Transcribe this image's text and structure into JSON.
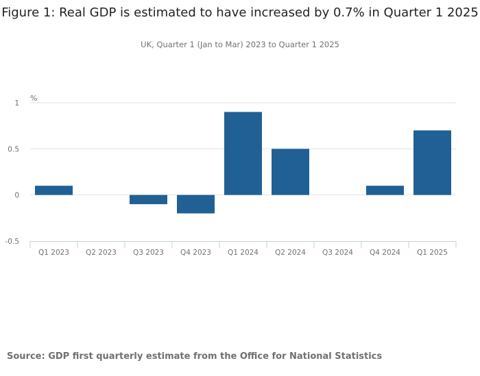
{
  "chart_data": {
    "type": "bar",
    "title": "Figure 1: Real GDP is estimated to have increased by 0.7% in Quarter 1 2025",
    "subtitle": "UK, Quarter 1 (Jan to Mar) 2023 to Quarter 1 2025",
    "ylabel": "%",
    "xlabel": "",
    "categories": [
      "Q1 2023",
      "Q2 2023",
      "Q3 2023",
      "Q4 2023",
      "Q1 2024",
      "Q2 2024",
      "Q3 2024",
      "Q4 2024",
      "Q1 2025"
    ],
    "values": [
      0.1,
      0,
      -0.1,
      -0.2,
      0.9,
      0.5,
      0,
      0.1,
      0.7
    ],
    "ylim": [
      -0.5,
      1
    ],
    "yticks": [
      "1",
      "0.5",
      "0",
      "-0.5"
    ],
    "ytick_values": [
      1,
      0.5,
      0,
      -0.5
    ],
    "grid": true,
    "bar_color": "#206095",
    "source": "Source: GDP first quarterly estimate from the Office for National Statistics"
  }
}
